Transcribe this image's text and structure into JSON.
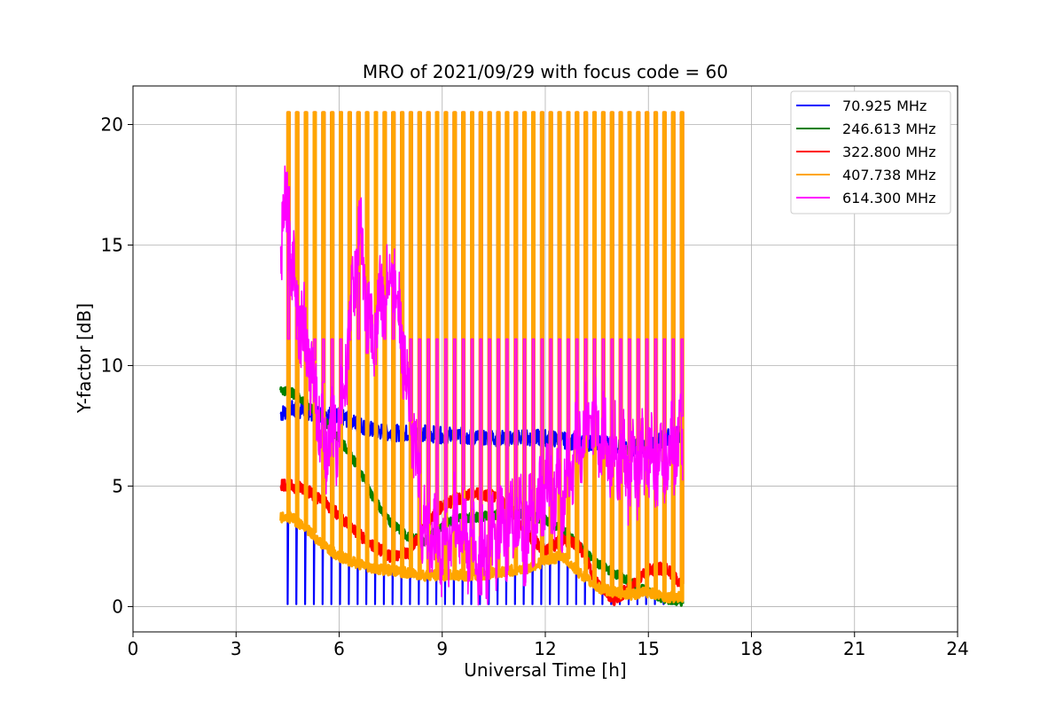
{
  "chart_data": {
    "type": "line",
    "title": "MRO of 2021/09/29 with focus code = 60",
    "xlabel": "Universal Time [h]",
    "ylabel": "Y-factor [dB]",
    "xlim": [
      0,
      24
    ],
    "ylim": [
      -1.05,
      21.6
    ],
    "xticks": [
      0,
      3,
      6,
      9,
      12,
      15,
      18,
      21,
      24
    ],
    "yticks": [
      0,
      5,
      10,
      15,
      20
    ],
    "grid": true,
    "legend_position": "top-right",
    "calibration_pulses": {
      "start_h": 4.5,
      "step_h": 0.2545,
      "count": 46,
      "peak_db": 20.5,
      "carried_by_series": "407.738 MHz"
    },
    "series": [
      {
        "name": " 70.925 MHz",
        "color": "#0000ff",
        "x": [
          4.3,
          4.6,
          5.0,
          5.5,
          6.0,
          6.5,
          7.0,
          7.5,
          8.0,
          8.5,
          9.0,
          9.5,
          10.0,
          10.5,
          11.0,
          11.5,
          12.0,
          12.5,
          13.0,
          13.5,
          14.0,
          14.5,
          15.0,
          15.5,
          16.0
        ],
        "y": [
          8.0,
          8.2,
          8.1,
          8.0,
          7.9,
          7.6,
          7.3,
          7.2,
          7.2,
          7.2,
          7.1,
          7.1,
          7.0,
          7.0,
          7.0,
          7.0,
          7.0,
          6.9,
          6.8,
          6.8,
          6.7,
          6.6,
          6.7,
          7.0,
          7.2
        ]
      },
      {
        "name": "246.613 MHz",
        "color": "#008000",
        "x": [
          4.3,
          4.6,
          5.0,
          5.5,
          6.0,
          6.5,
          7.0,
          7.5,
          8.0,
          8.5,
          9.0,
          9.5,
          10.0,
          10.5,
          11.0,
          11.5,
          12.0,
          12.5,
          13.0,
          13.5,
          14.0,
          14.5,
          15.0,
          15.5,
          16.0
        ],
        "y": [
          9.0,
          8.9,
          8.5,
          7.8,
          7.0,
          5.9,
          4.5,
          3.5,
          2.9,
          2.7,
          3.4,
          3.7,
          3.7,
          3.8,
          3.9,
          3.8,
          3.6,
          3.2,
          2.5,
          1.8,
          1.4,
          1.0,
          0.6,
          0.3,
          0.2
        ]
      },
      {
        "name": "322.800 MHz",
        "color": "#ff0000",
        "x": [
          4.3,
          4.6,
          5.0,
          5.5,
          6.0,
          6.5,
          7.0,
          7.5,
          8.0,
          8.5,
          9.0,
          9.5,
          10.0,
          10.5,
          11.0,
          11.5,
          12.0,
          12.5,
          13.0,
          13.5,
          14.0,
          14.5,
          15.0,
          15.5,
          16.0
        ],
        "y": [
          5.1,
          5.0,
          4.9,
          4.4,
          3.8,
          3.1,
          2.5,
          2.1,
          2.2,
          3.4,
          4.2,
          4.5,
          4.7,
          4.6,
          4.0,
          3.0,
          2.3,
          2.8,
          2.5,
          1.0,
          0.3,
          0.8,
          1.5,
          1.6,
          0.8
        ]
      },
      {
        "name": "407.738 MHz",
        "color": "#ffa500",
        "x": [
          4.3,
          4.6,
          5.0,
          5.5,
          6.0,
          6.5,
          7.0,
          7.5,
          8.0,
          8.5,
          9.0,
          9.5,
          10.0,
          10.5,
          11.0,
          11.5,
          12.0,
          12.5,
          13.0,
          13.5,
          14.0,
          14.5,
          15.0,
          15.5,
          16.0
        ],
        "y": [
          3.7,
          3.7,
          3.3,
          2.6,
          2.1,
          1.8,
          1.6,
          1.5,
          1.4,
          1.3,
          1.3,
          1.3,
          1.3,
          1.4,
          1.5,
          1.6,
          1.9,
          2.1,
          1.4,
          0.8,
          0.6,
          0.5,
          0.6,
          0.4,
          0.4
        ]
      },
      {
        "name": "614.300 MHz",
        "color": "#ff00ff",
        "x": [
          4.3,
          4.5,
          4.7,
          5.0,
          5.3,
          5.6,
          6.0,
          6.3,
          6.6,
          6.9,
          7.2,
          7.6,
          8.0,
          8.5,
          9.0,
          9.5,
          10.0,
          10.5,
          11.0,
          11.5,
          12.0,
          12.5,
          13.0,
          13.5,
          14.0,
          14.5,
          15.0,
          15.5,
          16.0
        ],
        "y": [
          15.6,
          16.2,
          13.5,
          11.0,
          9.0,
          6.5,
          7.5,
          11.5,
          15.8,
          11.0,
          12.5,
          14.0,
          9.0,
          3.0,
          2.5,
          3.5,
          2.0,
          2.5,
          3.5,
          3.0,
          5.0,
          4.5,
          7.0,
          7.5,
          6.5,
          5.5,
          6.0,
          6.5,
          6.8
        ]
      }
    ]
  }
}
